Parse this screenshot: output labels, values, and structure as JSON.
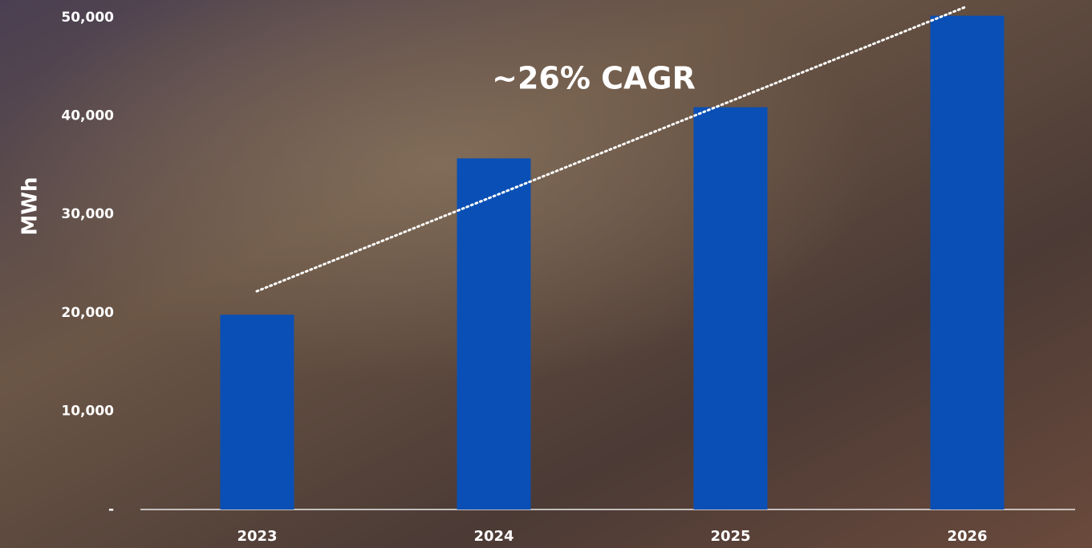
{
  "chart_data": {
    "type": "bar",
    "y_axis_label": "MWh",
    "annotation": "~26% CAGR",
    "categories": [
      "2023",
      "2024",
      "2025",
      "2026"
    ],
    "values": [
      19800,
      35700,
      40900,
      50200
    ],
    "color": "#0a4fb5",
    "ylim": [
      0,
      51800
    ],
    "yticks": [
      {
        "value": 0,
        "label": "-"
      },
      {
        "value": 10000,
        "label": "10,000"
      },
      {
        "value": 20000,
        "label": "20,000"
      },
      {
        "value": 30000,
        "label": "30,000"
      },
      {
        "value": 40000,
        "label": "40,000"
      },
      {
        "value": 50000,
        "label": "50,000"
      }
    ],
    "grid": false
  }
}
